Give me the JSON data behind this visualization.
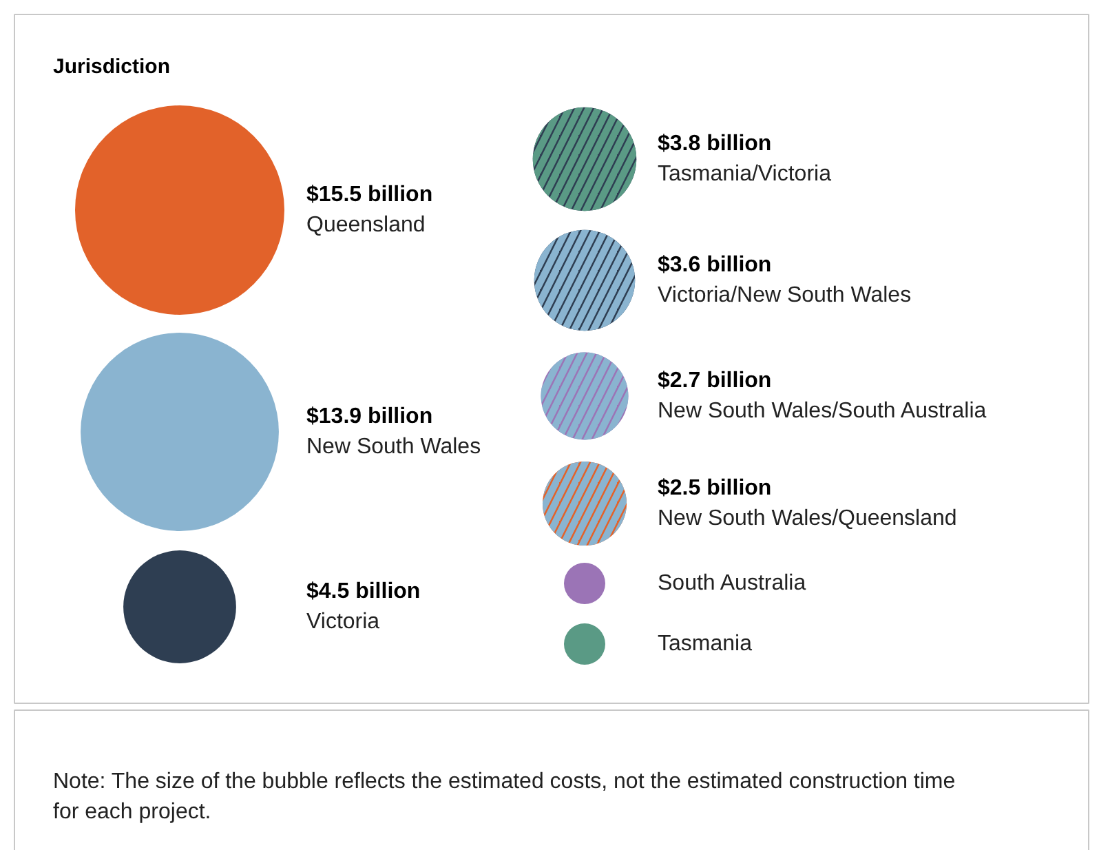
{
  "chart_data": {
    "type": "other",
    "title": "Jurisdiction",
    "categories": [
      "Queensland",
      "New South Wales",
      "Victoria",
      "Tasmania/Victoria",
      "Victoria/New South Wales",
      "New South Wales/South Australia",
      "New South Wales/Queensland",
      "South Australia",
      "Tasmania"
    ],
    "values": [
      15.5,
      13.9,
      4.5,
      3.8,
      3.6,
      2.7,
      2.5,
      null,
      null
    ],
    "value_labels": [
      "$15.5 billion",
      "$13.9 billion",
      "$4.5 billion",
      "$3.8 billion",
      "$3.6 billion",
      "$2.7 billion",
      "$2.5 billion",
      null,
      null
    ],
    "colors": [
      "#e2622a",
      "#8ab4d0",
      "#2e3e52",
      [
        "#2e3e52",
        "#5a9a85"
      ],
      [
        "#2e3e52",
        "#8ab4d0"
      ],
      [
        "#9b74b6",
        "#8ab4d0"
      ],
      [
        "#e2622a",
        "#8ab4d0"
      ],
      "#9b74b6",
      "#5a9a85"
    ],
    "annotations": [
      "Note: The size of the bubble reflects the estimated costs, not the estimated construction time for each project."
    ]
  }
}
